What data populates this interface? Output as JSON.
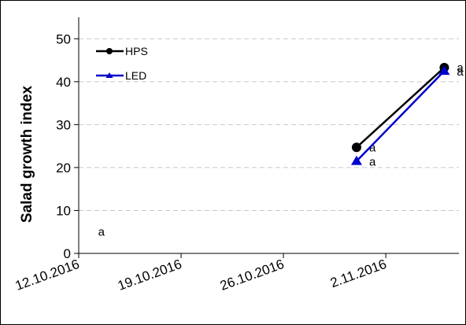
{
  "chart_data": {
    "type": "line",
    "ylabel": "Salad growth index",
    "xlabel": "",
    "title": "",
    "x_ticks": [
      "12.10.2016",
      "19.10.2016",
      "26.10.2016",
      "2.11.2016"
    ],
    "xlim": [
      "2016-10-12",
      "2016-11-07"
    ],
    "ylim": [
      0,
      55
    ],
    "y_ticks": [
      0,
      10,
      20,
      30,
      40,
      50
    ],
    "grid": "horizontal-dashed",
    "legend": "top-left",
    "series": [
      {
        "name": "HPS",
        "color": "#000000",
        "marker": "circle",
        "x": [
          "2016-10-31",
          "2016-11-06"
        ],
        "y": [
          24.7,
          43.3
        ],
        "labels": [
          "a",
          "a"
        ]
      },
      {
        "name": "LED",
        "color": "#0000cc",
        "marker": "triangle",
        "x": [
          "2016-10-31",
          "2016-11-06"
        ],
        "y": [
          21.5,
          42.5
        ],
        "labels": [
          "a",
          "a"
        ]
      }
    ],
    "annotations": [
      {
        "text": "a",
        "x": "2016-10-13",
        "y": 5
      }
    ]
  }
}
